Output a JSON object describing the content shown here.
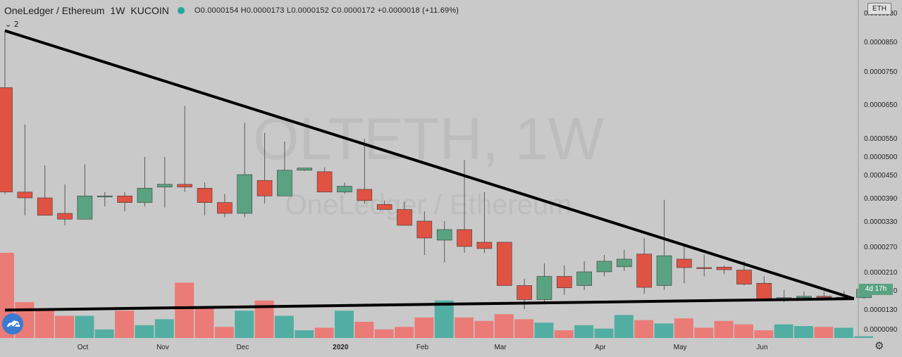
{
  "header": {
    "symbol": "OneLedger / Ethereum",
    "interval": "1W",
    "exchange": "KUCOIN",
    "ohlc": "O0.0000154  H0.0000173  L0.0000152  C0.0000172  +0.0000018 (+11.69%)"
  },
  "legend_toggle": "⌄ 2",
  "currency_badge": "ETH",
  "countdown": "4d 17h",
  "watermark": {
    "title": "OLTETH, 1W",
    "subtitle": "OneLedger / Ethereum"
  },
  "colors": {
    "up": "#5aa382",
    "down": "#e05242",
    "vol_up": "#52aea2",
    "vol_down": "#ea7b77",
    "background": "#c9c9c9",
    "trendline": "#000000"
  },
  "chart_data": {
    "type": "candlestick",
    "interval": "1W",
    "price_axis_labels": [
      "0.0000930",
      "0.0000850",
      "0.0000750",
      "0.0000650",
      "0.0000550",
      "0.0000500",
      "0.0000450",
      "0.0000390",
      "0.0000330",
      "0.0000270",
      "0.0000210",
      "0.0000170",
      "0.0000130",
      "0.0000090"
    ],
    "time_axis_labels": [
      "Oct",
      "Nov",
      "Dec",
      "2020",
      "Feb",
      "Mar",
      "Apr",
      "May",
      "Jun"
    ],
    "candles": [
      {
        "o": 7e-05,
        "h": 8.8e-05,
        "l": 4e-05,
        "c": 4.05e-05,
        "v": 1.0
      },
      {
        "o": 4.05e-05,
        "h": 5.9e-05,
        "l": 3.45e-05,
        "c": 3.9e-05,
        "v": 0.42
      },
      {
        "o": 3.9e-05,
        "h": 4.75e-05,
        "l": 3.45e-05,
        "c": 3.45e-05,
        "v": 0.33
      },
      {
        "o": 3.5e-05,
        "h": 4.25e-05,
        "l": 3.2e-05,
        "c": 3.35e-05,
        "v": 0.26
      },
      {
        "o": 3.35e-05,
        "h": 4.78e-05,
        "l": 3.35e-05,
        "c": 3.95e-05,
        "v": 0.26
      },
      {
        "o": 3.93e-05,
        "h": 4.05e-05,
        "l": 3.68e-05,
        "c": 3.95e-05,
        "v": 0.1
      },
      {
        "o": 3.95e-05,
        "h": 4.05e-05,
        "l": 3.55e-05,
        "c": 3.78e-05,
        "v": 0.32
      },
      {
        "o": 3.78e-05,
        "h": 4.98e-05,
        "l": 3.68e-05,
        "c": 4.15e-05,
        "v": 0.15
      },
      {
        "o": 4.18e-05,
        "h": 4.98e-05,
        "l": 3.65e-05,
        "c": 4.25e-05,
        "v": 0.22
      },
      {
        "o": 4.25e-05,
        "h": 6.45e-05,
        "l": 4.05e-05,
        "c": 4.18e-05,
        "v": 0.65
      },
      {
        "o": 4.15e-05,
        "h": 4.3e-05,
        "l": 3.45e-05,
        "c": 3.78e-05,
        "v": 0.37
      },
      {
        "o": 3.78e-05,
        "h": 4e-05,
        "l": 3.4e-05,
        "c": 3.5e-05,
        "v": 0.13
      },
      {
        "o": 3.5e-05,
        "h": 5.95e-05,
        "l": 3.4e-05,
        "c": 4.5e-05,
        "v": 0.32
      },
      {
        "o": 4.35e-05,
        "h": 5.65e-05,
        "l": 3.75e-05,
        "c": 3.95e-05,
        "v": 0.44
      },
      {
        "o": 3.95e-05,
        "h": 5.4e-05,
        "l": 3.95e-05,
        "c": 4.62e-05,
        "v": 0.26
      },
      {
        "o": 4.62e-05,
        "h": 4.65e-05,
        "l": 4.6e-05,
        "c": 4.68e-05,
        "v": 0.09
      },
      {
        "o": 4.58e-05,
        "h": 4.7e-05,
        "l": 4.05e-05,
        "c": 4.05e-05,
        "v": 0.12
      },
      {
        "o": 4.05e-05,
        "h": 4.3e-05,
        "l": 4e-05,
        "c": 4.2e-05,
        "v": 0.32
      },
      {
        "o": 4.12e-05,
        "h": 5.48e-05,
        "l": 3.75e-05,
        "c": 3.83e-05,
        "v": 0.19
      },
      {
        "o": 3.73e-05,
        "h": 3.83e-05,
        "l": 3.6e-05,
        "c": 3.6e-05,
        "v": 0.1
      },
      {
        "o": 3.6e-05,
        "h": 3.8e-05,
        "l": 3.2e-05,
        "c": 3.2e-05,
        "v": 0.13
      },
      {
        "o": 3.3e-05,
        "h": 3.55e-05,
        "l": 2.5e-05,
        "c": 2.9e-05,
        "v": 0.24
      },
      {
        "o": 2.85e-05,
        "h": 3.3e-05,
        "l": 2.32e-05,
        "c": 3.1e-05,
        "v": 0.44
      },
      {
        "o": 3.1e-05,
        "h": 4.9e-05,
        "l": 2.55e-05,
        "c": 2.7e-05,
        "v": 0.24
      },
      {
        "o": 2.8e-05,
        "h": 4.05e-05,
        "l": 2.55e-05,
        "c": 2.65e-05,
        "v": 0.2
      },
      {
        "o": 2.8e-05,
        "h": 2.8e-05,
        "l": 1.8e-05,
        "c": 1.8e-05,
        "v": 0.28
      },
      {
        "o": 1.8e-05,
        "h": 1.95e-05,
        "l": 1.3e-05,
        "c": 1.5e-05,
        "v": 0.22
      },
      {
        "o": 1.5e-05,
        "h": 2.3e-05,
        "l": 1.4e-05,
        "c": 2e-05,
        "v": 0.18
      },
      {
        "o": 2e-05,
        "h": 2.25e-05,
        "l": 1.6e-05,
        "c": 1.75e-05,
        "v": 0.09
      },
      {
        "o": 1.8e-05,
        "h": 2.35e-05,
        "l": 1.7e-05,
        "c": 2.1e-05,
        "v": 0.15
      },
      {
        "o": 2.1e-05,
        "h": 2.5e-05,
        "l": 2e-05,
        "c": 2.35e-05,
        "v": 0.11
      },
      {
        "o": 2.22e-05,
        "h": 2.62e-05,
        "l": 2.12e-05,
        "c": 2.4e-05,
        "v": 0.27
      },
      {
        "o": 2.52e-05,
        "h": 2.9e-05,
        "l": 1.62e-05,
        "c": 1.76e-05,
        "v": 0.21
      },
      {
        "o": 1.8e-05,
        "h": 3.85e-05,
        "l": 1.7e-05,
        "c": 2.48e-05,
        "v": 0.17
      },
      {
        "o": 2.4e-05,
        "h": 2.7e-05,
        "l": 1.85e-05,
        "c": 2.2e-05,
        "v": 0.23
      },
      {
        "o": 2.2e-05,
        "h": 2.5e-05,
        "l": 2e-05,
        "c": 2.18e-05,
        "v": 0.12
      },
      {
        "o": 2.21e-05,
        "h": 2.25e-05,
        "l": 2.05e-05,
        "c": 2.15e-05,
        "v": 0.2
      },
      {
        "o": 2.14e-05,
        "h": 2.35e-05,
        "l": 1.8e-05,
        "c": 1.83e-05,
        "v": 0.16
      },
      {
        "o": 1.85e-05,
        "h": 2e-05,
        "l": 1.48e-05,
        "c": 1.5e-05,
        "v": 0.09
      },
      {
        "o": 1.53e-05,
        "h": 1.7e-05,
        "l": 1.45e-05,
        "c": 1.54e-05,
        "v": 0.16
      },
      {
        "o": 1.54e-05,
        "h": 1.67e-05,
        "l": 1.5e-05,
        "c": 1.57e-05,
        "v": 0.14
      },
      {
        "o": 1.57e-05,
        "h": 1.67e-05,
        "l": 1.5e-05,
        "c": 1.55e-05,
        "v": 0.13
      },
      {
        "o": 1.55e-05,
        "h": 1.68e-05,
        "l": 1.5e-05,
        "c": 1.55e-05,
        "v": 0.12
      },
      {
        "o": 1.54e-05,
        "h": 1.73e-05,
        "l": 1.52e-05,
        "c": 1.72e-05,
        "v": 0.02
      }
    ],
    "trendlines": [
      {
        "from_index": 0,
        "from_price": 8.8e-05,
        "to_index": 42.5,
        "to_price": 1.52e-05
      },
      {
        "from_index": 0,
        "from_price": 1.28e-05,
        "to_index": 42.5,
        "to_price": 1.52e-05
      }
    ],
    "grid": false,
    "legend": "top-left"
  }
}
